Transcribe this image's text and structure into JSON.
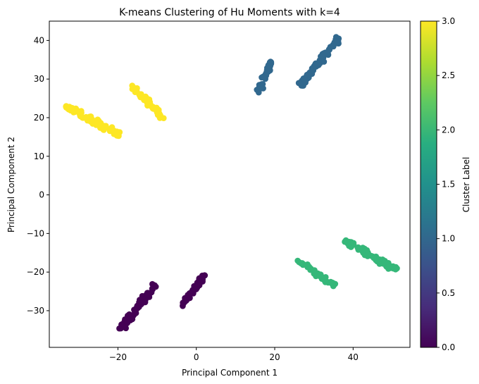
{
  "chart_data": {
    "type": "scatter",
    "title": "K-means Clustering of Hu Moments with k=4",
    "xlabel": "Principal Component 1",
    "ylabel": "Principal Component 2",
    "xlim": [
      -37.5,
      54.5
    ],
    "ylim": [
      -39.5,
      45.0
    ],
    "xticks": [
      -20,
      0,
      20,
      40
    ],
    "yticks": [
      -30,
      -20,
      -10,
      0,
      10,
      20,
      30,
      40
    ],
    "grid": false,
    "colorbar": {
      "label": "Cluster Label",
      "range": [
        0.0,
        3.0
      ],
      "ticks": [
        "0.0",
        "0.5",
        "1.0",
        "1.5",
        "2.0",
        "2.5",
        "3.0"
      ],
      "colormap": "viridis"
    },
    "cluster_colors": [
      "#440154",
      "#31688e",
      "#35b779",
      "#fde725"
    ],
    "clusters": [
      {
        "label": 0,
        "segments": [
          {
            "from": [
              -19.5,
              -35.2
            ],
            "to": [
              -10.5,
              -23.2
            ],
            "spread": 1.1,
            "n": 90
          },
          {
            "from": [
              -3.8,
              -28.6
            ],
            "to": [
              2.3,
              -20.5
            ],
            "spread": 0.9,
            "n": 45
          }
        ]
      },
      {
        "label": 1,
        "segments": [
          {
            "from": [
              15.5,
              25.8
            ],
            "to": [
              19.2,
              34.5
            ],
            "spread": 0.9,
            "n": 40
          },
          {
            "from": [
              26.5,
              28.5
            ],
            "to": [
              36.5,
              40.8
            ],
            "spread": 1.1,
            "n": 90
          }
        ]
      },
      {
        "label": 2,
        "segments": [
          {
            "from": [
              25.5,
              -16.8
            ],
            "to": [
              35.5,
              -23.6
            ],
            "spread": 0.8,
            "n": 45
          },
          {
            "from": [
              37.5,
              -11.5
            ],
            "to": [
              51.0,
              -19.5
            ],
            "spread": 1.0,
            "n": 90
          }
        ]
      },
      {
        "label": 3,
        "segments": [
          {
            "from": [
              -33.5,
              23.0
            ],
            "to": [
              -19.5,
              15.5
            ],
            "spread": 1.1,
            "n": 95
          },
          {
            "from": [
              -16.5,
              28.2
            ],
            "to": [
              -8.0,
              19.5
            ],
            "spread": 0.9,
            "n": 55
          }
        ]
      }
    ]
  }
}
